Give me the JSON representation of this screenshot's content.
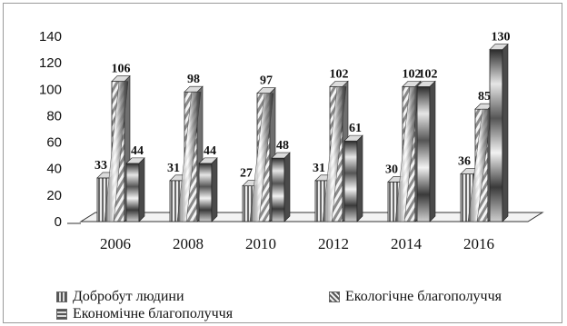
{
  "chart_data": {
    "type": "bar",
    "categories": [
      "2006",
      "2008",
      "2010",
      "2012",
      "2014",
      "2016"
    ],
    "series": [
      {
        "name": "Добробут людини",
        "values": [
          33,
          31,
          27,
          31,
          30,
          36
        ]
      },
      {
        "name": "Екологічне благополуччя",
        "values": [
          106,
          98,
          97,
          102,
          102,
          85
        ]
      },
      {
        "name": "Економічне благополуччя",
        "values": [
          44,
          44,
          48,
          61,
          102,
          130
        ]
      }
    ],
    "data_labels": [
      [
        "33",
        "31",
        "27",
        "31",
        "30",
        "36"
      ],
      [
        "106",
        "98",
        "97",
        "102",
        "102",
        "85"
      ],
      [
        "44",
        "44",
        "48",
        "61",
        "102",
        "130"
      ]
    ],
    "ylim": [
      0,
      140
    ],
    "yticks": [
      "0",
      "20",
      "40",
      "60",
      "80",
      "100",
      "120",
      "140"
    ],
    "grid": false,
    "legend_position": "bottom",
    "style": "3d-clustered-column"
  }
}
